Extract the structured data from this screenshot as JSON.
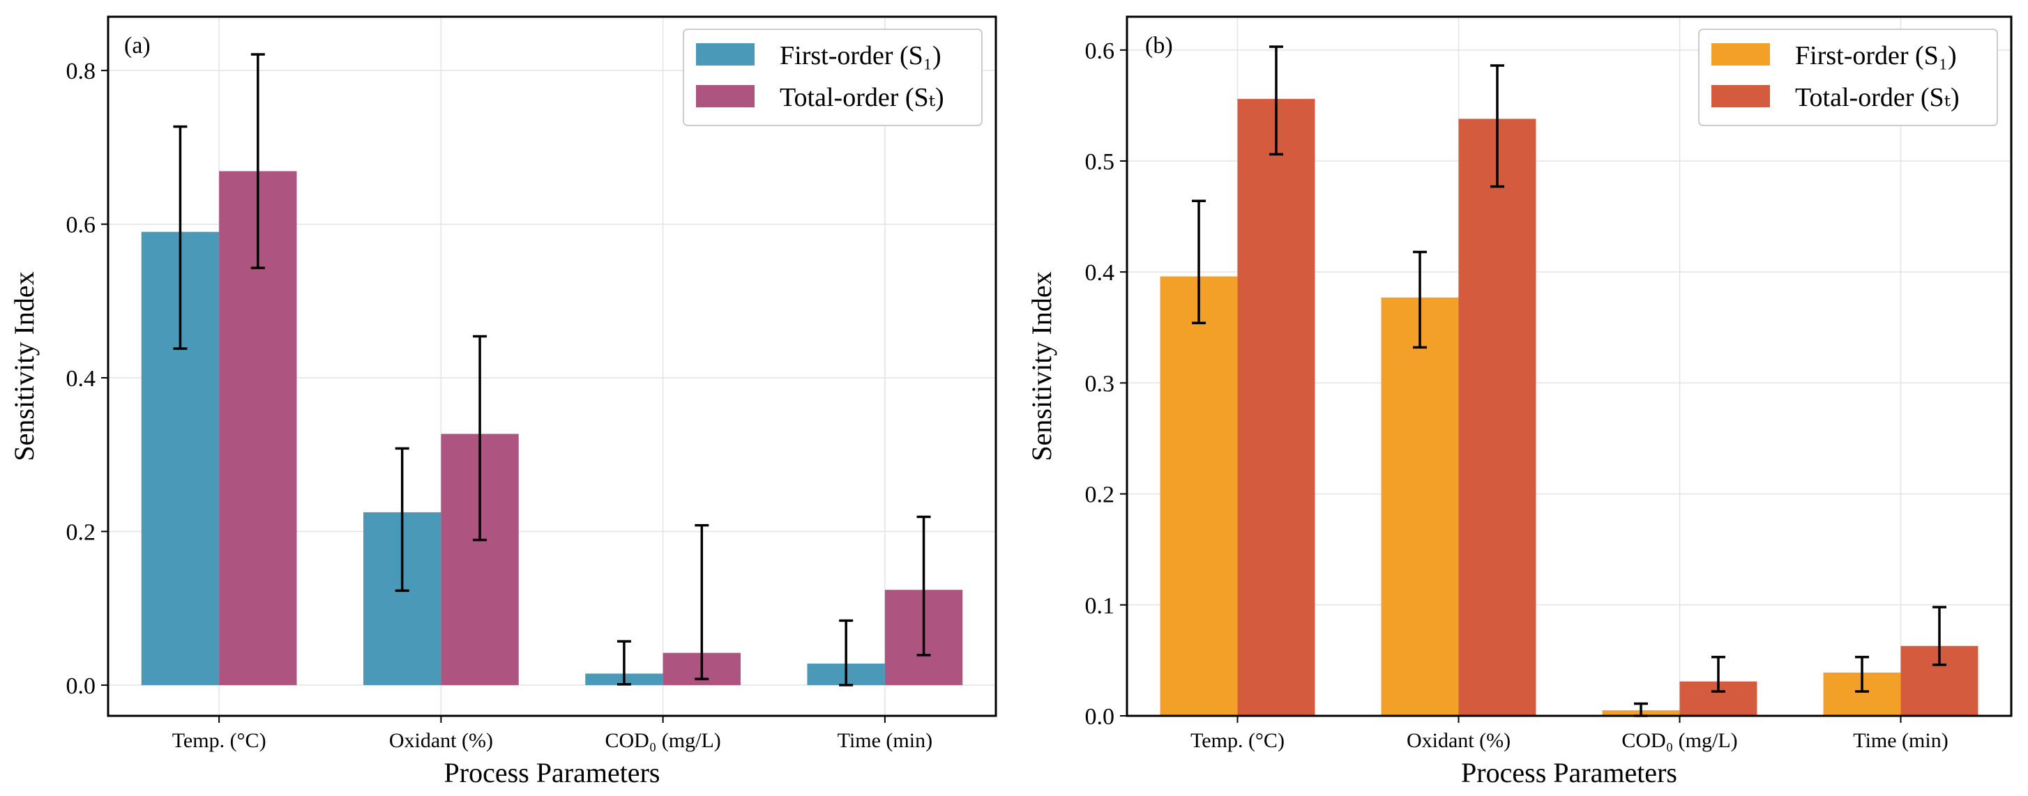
{
  "chart_data": [
    {
      "type": "bar",
      "panel": "(a)",
      "categories": [
        "Temp. (°C)",
        "Oxidant (%)",
        "COD₀ (mg/L)",
        "Time (min)"
      ],
      "xlabel": "Process Parameters",
      "ylabel": "Sensitivity Index",
      "ylim": [
        -0.04,
        0.87
      ],
      "yticks": [
        0.0,
        0.2,
        0.4,
        0.6,
        0.8
      ],
      "ytick_labels": [
        "0.0",
        "0.2",
        "0.4",
        "0.6",
        "0.8"
      ],
      "grid": true,
      "legend_position": "top-right",
      "series": [
        {
          "name": "First-order (S₁)",
          "color": "#4a99b9",
          "values": [
            0.59,
            0.225,
            0.015,
            0.028
          ],
          "error_low": [
            0.438,
            0.123,
            0.001,
            0.0
          ],
          "error_high": [
            0.727,
            0.308,
            0.057,
            0.084
          ]
        },
        {
          "name": "Total-order (Sₜ)",
          "color": "#ad5580",
          "values": [
            0.669,
            0.327,
            0.042,
            0.124
          ],
          "error_low": [
            0.543,
            0.189,
            0.008,
            0.039
          ],
          "error_high": [
            0.821,
            0.454,
            0.208,
            0.219
          ]
        }
      ]
    },
    {
      "type": "bar",
      "panel": "(b)",
      "categories": [
        "Temp. (°C)",
        "Oxidant (%)",
        "COD₀ (mg/L)",
        "Time (min)"
      ],
      "xlabel": "Process Parameters",
      "ylabel": "Sensitivity Index",
      "ylim": [
        0.0,
        0.63
      ],
      "yticks": [
        0.0,
        0.1,
        0.2,
        0.3,
        0.4,
        0.5,
        0.6
      ],
      "ytick_labels": [
        "0.0",
        "0.1",
        "0.2",
        "0.3",
        "0.4",
        "0.5",
        "0.6"
      ],
      "grid": true,
      "legend_position": "top-right",
      "series": [
        {
          "name": "First-order (S₁)",
          "color": "#f2a028",
          "values": [
            0.396,
            0.377,
            0.005,
            0.039
          ],
          "error_low": [
            0.354,
            0.332,
            0.0,
            0.022
          ],
          "error_high": [
            0.464,
            0.418,
            0.011,
            0.053
          ]
        },
        {
          "name": "Total-order (Sₜ)",
          "color": "#d45b3e",
          "values": [
            0.556,
            0.538,
            0.031,
            0.063
          ],
          "error_low": [
            0.506,
            0.477,
            0.022,
            0.046
          ],
          "error_high": [
            0.603,
            0.586,
            0.053,
            0.098
          ]
        }
      ]
    }
  ]
}
